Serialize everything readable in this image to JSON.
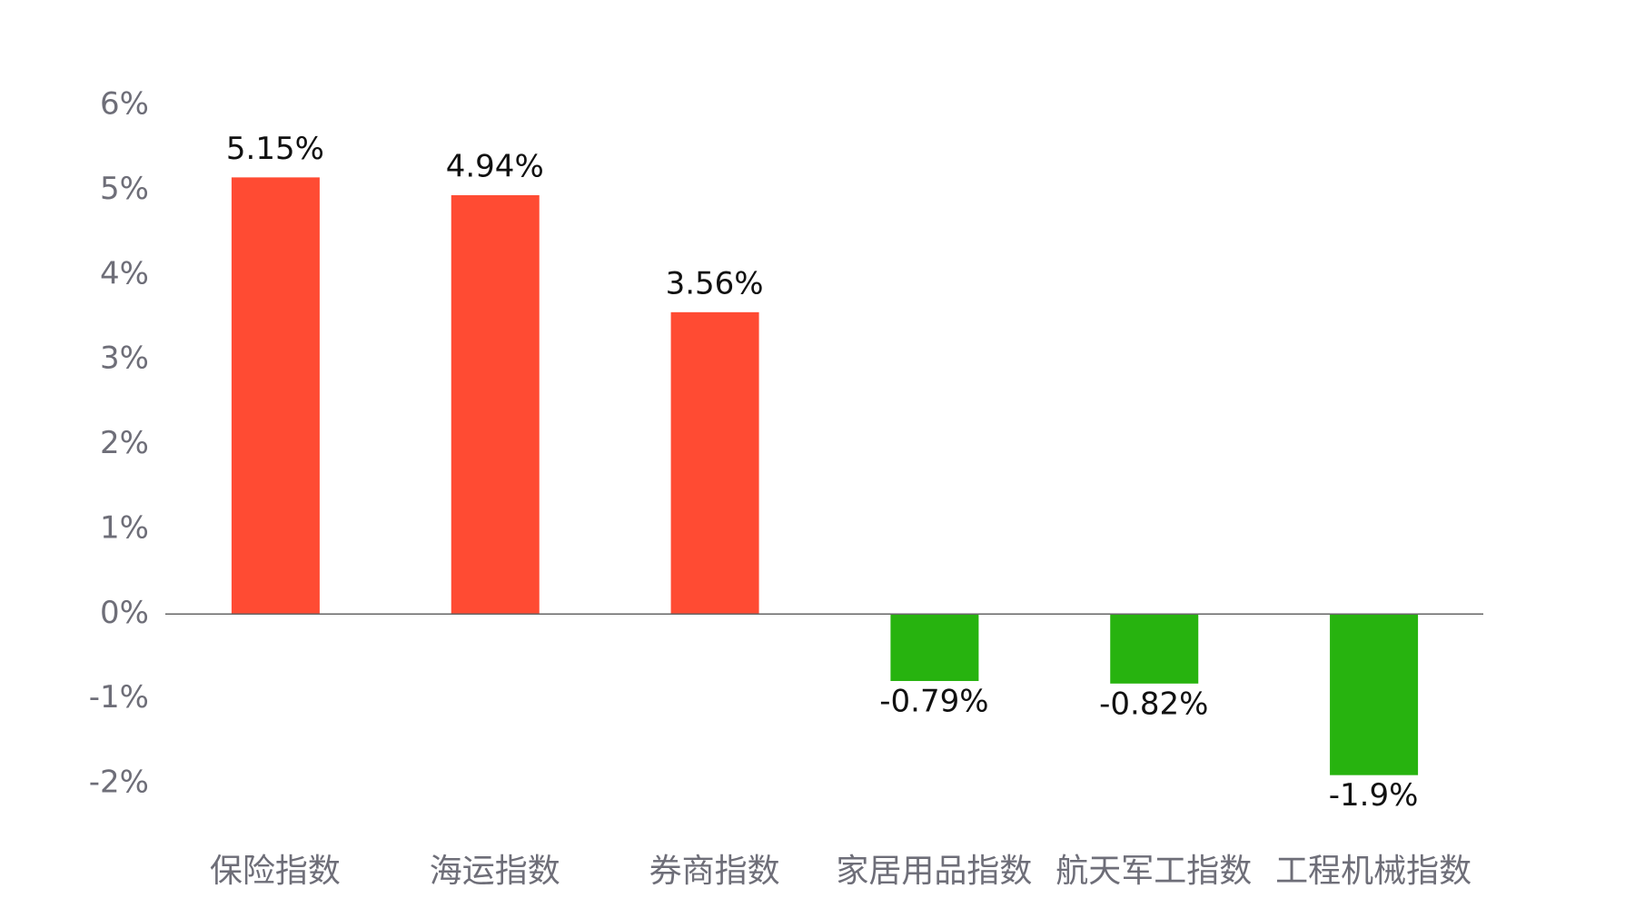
{
  "chart_data": {
    "type": "bar",
    "categories": [
      "保险指数",
      "海运指数",
      "券商指数",
      "家居用品指数",
      "航天军工指数",
      "工程机械指数"
    ],
    "values": [
      5.15,
      4.94,
      3.56,
      -0.79,
      -0.82,
      -1.9
    ],
    "value_labels": [
      "5.15%",
      "4.94%",
      "3.56%",
      "-0.79%",
      "-0.82%",
      "-1.9%"
    ],
    "colors": [
      "#ff4b33",
      "#ff4b33",
      "#ff4b33",
      "#27b30f",
      "#27b30f",
      "#27b30f"
    ],
    "ylim": [
      -2,
      6
    ],
    "yticks": [
      {
        "value": -2,
        "label": "-2%"
      },
      {
        "value": -1,
        "label": "-1%"
      },
      {
        "value": 0,
        "label": "0%"
      },
      {
        "value": 1,
        "label": "1%"
      },
      {
        "value": 2,
        "label": "2%"
      },
      {
        "value": 3,
        "label": "3%"
      },
      {
        "value": 4,
        "label": "4%"
      },
      {
        "value": 5,
        "label": "5%"
      },
      {
        "value": 6,
        "label": "6%"
      }
    ],
    "grid": false
  }
}
